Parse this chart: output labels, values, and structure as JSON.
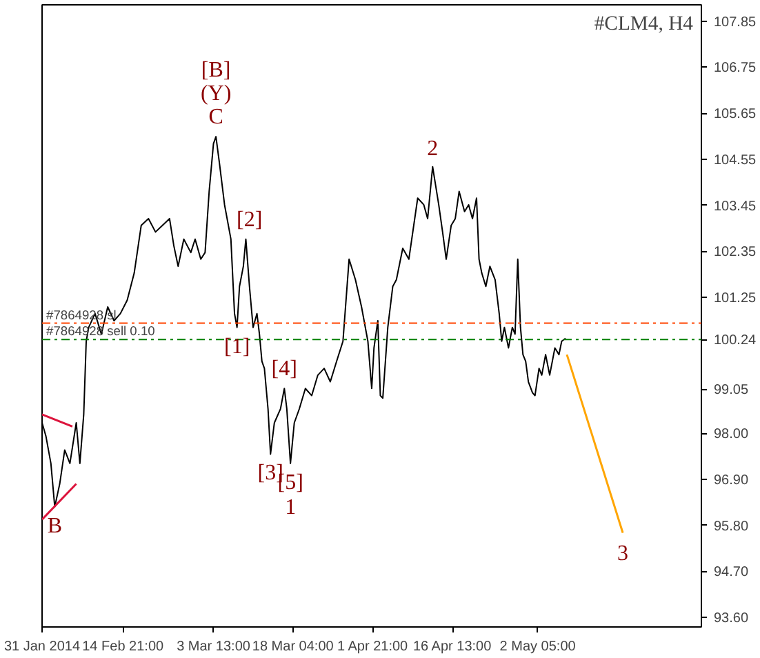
{
  "chart_data": {
    "type": "line",
    "title": "#CLM4, H4",
    "xlim": [
      "2014-01-31T00:00",
      "2014-06-01T08:00"
    ],
    "ylim": [
      93.37,
      108.24
    ],
    "xticks": [
      {
        "value": "2014-01-31T00:00",
        "label": "31 Jan 2014"
      },
      {
        "value": "2014-02-14T21:00",
        "label": "14 Feb 21:00"
      },
      {
        "value": "2014-03-03T13:00",
        "label": "3 Mar 13:00"
      },
      {
        "value": "2014-03-18T04:00",
        "label": "18 Mar 04:00"
      },
      {
        "value": "2014-04-01T21:00",
        "label": "1 Apr 21:00"
      },
      {
        "value": "2014-04-16T13:00",
        "label": "16 Apr 13:00"
      },
      {
        "value": "2014-05-02T05:00",
        "label": "2 May 05:00"
      }
    ],
    "yticks": [
      {
        "value": 93.6,
        "label": "93.60"
      },
      {
        "value": 94.7,
        "label": "94.70"
      },
      {
        "value": 95.8,
        "label": "95.80"
      },
      {
        "value": 96.9,
        "label": "96.90"
      },
      {
        "value": 98.0,
        "label": "98.00"
      },
      99.05,
      100.24,
      101.25,
      102.35,
      103.45,
      104.55,
      105.65,
      106.75,
      107.85
    ],
    "grid": false,
    "line_style": "solid",
    "series": [
      {
        "color": "#000000",
        "x": [
          "2014-01-31T00:00",
          "2014-01-31T17:00",
          "2014-02-01T15:00",
          "2014-02-02T08:00",
          "2014-02-03T06:00",
          "2014-02-04T04:00",
          "2014-02-05T03:00",
          "2014-02-06T07:00",
          "2014-02-06T23:00",
          "2014-02-07T16:00",
          "2014-02-08T03:00",
          "2014-02-08T14:00",
          "2014-02-09T18:00",
          "2014-02-10T22:00",
          "2014-02-12T02:00",
          "2014-02-13T06:00",
          "2014-02-14T10:00",
          "2014-02-15T16:00",
          "2014-02-16T23:00",
          "2014-02-18T06:00",
          "2014-02-19T14:00",
          "2014-02-20T21:00",
          "2014-02-22T04:00",
          "2014-02-23T11:00",
          "2014-02-24T06:00",
          "2014-02-25T01:00",
          "2014-02-26T02:00",
          "2014-02-27T09:00",
          "2014-02-28T04:00",
          "2014-03-01T05:00",
          "2014-03-02T00:00",
          "2014-03-02T18:00",
          "2014-03-03T13:00",
          "2014-03-04T00:00",
          "2014-03-04T16:00",
          "2014-03-05T14:00",
          "2014-03-06T18:00",
          "2014-03-07T10:00",
          "2014-03-07T21:00",
          "2014-03-08T08:00",
          "2014-03-09T01:00",
          "2014-03-09T12:00",
          "2014-03-10T04:00",
          "2014-03-10T20:00",
          "2014-03-11T13:00",
          "2014-03-12T00:00",
          "2014-03-12T11:00",
          "2014-03-12T22:00",
          "2014-03-13T14:00",
          "2014-03-14T01:00",
          "2014-03-14T18:00",
          "2014-03-15T21:00",
          "2014-03-16T14:00",
          "2014-03-17T01:00",
          "2014-03-17T17:00",
          "2014-03-18T10:00",
          "2014-03-19T08:00",
          "2014-03-20T11:00",
          "2014-03-21T15:00",
          "2014-03-22T18:00",
          "2014-03-23T22:00",
          "2014-03-25T01:00",
          "2014-03-26T05:00",
          "2014-03-27T09:00",
          "2014-03-28T12:00",
          "2014-03-29T16:00",
          "2014-03-30T19:00",
          "2014-03-31T23:00",
          "2014-04-01T16:00",
          "2014-04-02T02:00",
          "2014-04-02T19:00",
          "2014-04-03T06:00",
          "2014-04-03T17:00",
          "2014-04-04T15:00",
          "2014-04-05T13:00",
          "2014-04-06T05:00",
          "2014-04-07T09:00",
          "2014-04-08T12:00",
          "2014-04-10T03:00",
          "2014-04-11T06:00",
          "2014-04-11T23:00",
          "2014-04-12T21:00",
          "2014-04-14T00:00",
          "2014-04-14T17:00",
          "2014-04-15T09:00",
          "2014-04-16T07:00",
          "2014-04-17T01:00",
          "2014-04-17T18:00",
          "2014-04-18T18:00",
          "2014-04-19T12:00",
          "2014-04-20T05:00",
          "2014-04-20T23:00",
          "2014-04-21T10:00",
          "2014-04-21T22:00",
          "2014-04-22T16:00",
          "2014-04-23T10:00",
          "2014-04-24T09:00",
          "2014-04-25T03:00",
          "2014-04-25T14:00",
          "2014-04-26T02:00",
          "2014-04-26T20:00",
          "2014-04-27T13:00",
          "2014-04-28T01:00",
          "2014-04-28T13:00",
          "2014-04-29T01:00",
          "2014-04-29T12:00",
          "2014-04-30T00:00",
          "2014-04-30T12:00",
          "2014-05-01T06:00",
          "2014-05-01T17:00",
          "2014-05-02T11:00",
          "2014-05-02T23:00",
          "2014-05-03T16:00",
          "2014-05-04T10:00",
          "2014-05-05T09:00",
          "2014-05-06T03:00",
          "2014-05-06T15:00",
          "2014-05-07T08:00"
        ],
        "values": [
          98.25,
          97.93,
          97.28,
          96.24,
          96.79,
          97.6,
          97.28,
          98.25,
          97.28,
          98.45,
          100.2,
          100.53,
          100.86,
          100.37,
          101.02,
          100.69,
          100.86,
          101.18,
          101.83,
          102.97,
          103.13,
          102.81,
          102.97,
          103.13,
          102.48,
          101.99,
          102.64,
          102.32,
          102.64,
          102.16,
          102.32,
          103.78,
          104.92,
          105.09,
          104.43,
          103.46,
          102.64,
          100.86,
          100.53,
          101.51,
          101.99,
          102.64,
          101.51,
          100.53,
          100.86,
          100.37,
          99.72,
          99.55,
          98.58,
          97.5,
          98.25,
          98.58,
          99.07,
          98.58,
          97.28,
          98.25,
          98.58,
          99.07,
          98.9,
          99.39,
          99.55,
          99.23,
          99.72,
          100.2,
          102.16,
          101.67,
          101.02,
          100.2,
          99.07,
          100.04,
          100.69,
          98.9,
          98.84,
          100.53,
          101.51,
          101.67,
          102.42,
          102.16,
          103.62,
          103.46,
          103.13,
          104.37,
          103.46,
          102.81,
          102.16,
          102.97,
          103.13,
          103.78,
          103.3,
          103.46,
          103.13,
          103.62,
          102.16,
          101.83,
          101.51,
          101.99,
          101.67,
          100.86,
          100.2,
          100.53,
          100.04,
          100.53,
          100.37,
          102.16,
          100.53,
          99.88,
          99.72,
          99.23,
          98.97,
          98.9,
          99.55,
          99.39,
          99.88,
          99.39,
          100.04,
          99.88,
          100.2,
          100.27
        ]
      },
      {
        "color": "#ffa500",
        "x": [
          "2014-05-07T14:00",
          "2014-05-17T21:00"
        ],
        "values": [
          99.88,
          95.62
        ]
      },
      {
        "color": "#dc143c",
        "x": [
          "2014-01-31T00:00",
          "2014-02-05T14:00"
        ],
        "values": [
          98.45,
          98.16
        ]
      },
      {
        "color": "#dc143c",
        "x": [
          "2014-01-31T00:00",
          "2014-02-06T07:00"
        ],
        "values": [
          95.94,
          96.79
        ]
      }
    ],
    "ref_lines": [
      {
        "axis": "y",
        "value": 100.63,
        "label": "#7864928 sl",
        "color": "#ff4500",
        "line_style": "dashdot"
      },
      {
        "axis": "y",
        "value": 100.24,
        "label": "#7864928 sell 0.10",
        "color": "#008000",
        "line_style": "dashdot"
      }
    ],
    "annotations": [
      {
        "text": "[B]",
        "x": "2014-03-04T00:00",
        "y": 105.09
      },
      {
        "text": "(Y)",
        "x": "2014-03-04T00:00",
        "y": 105.09
      },
      {
        "text": "C",
        "x": "2014-03-04T00:00",
        "y": 105.09
      },
      {
        "text": "[2]",
        "x": "2014-03-10T04:00",
        "y": 102.64
      },
      {
        "text": "[1]",
        "x": "2014-03-07T21:00",
        "y": 100.53
      },
      {
        "text": "[4]",
        "x": "2014-03-16T14:00",
        "y": 99.07
      },
      {
        "text": "[3]",
        "x": "2014-03-14T01:00",
        "y": 97.5
      },
      {
        "text": "[5]",
        "x": "2014-03-17T17:00",
        "y": 97.28
      },
      {
        "text": "1",
        "x": "2014-03-17T17:00",
        "y": 97.28
      },
      {
        "text": "B",
        "x": "2014-02-02T08:00",
        "y": 96.24
      },
      {
        "text": "2",
        "x": "2014-04-12T21:00",
        "y": 104.37
      },
      {
        "text": "3",
        "x": "2014-05-17T21:00",
        "y": 95.62
      }
    ]
  }
}
